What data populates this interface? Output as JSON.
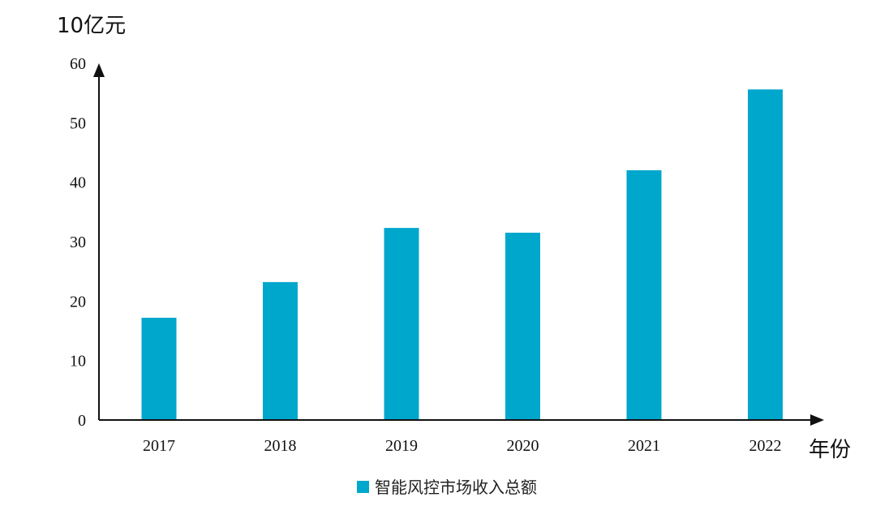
{
  "chart_data": {
    "type": "bar",
    "ylabel": "10亿元",
    "xlabel": "年份",
    "categories": [
      "2017",
      "2018",
      "2019",
      "2020",
      "2021",
      "2022"
    ],
    "series": [
      {
        "name": "智能风控市场收入总额",
        "values": [
          17.2,
          23.2,
          32.3,
          31.5,
          42.0,
          55.6
        ],
        "color": "#00a7cc"
      }
    ],
    "yticks": [
      "0",
      "10",
      "20",
      "30",
      "40",
      "50",
      "60"
    ],
    "ylim": [
      0,
      60
    ],
    "grid": false,
    "legend_position": "bottom-center"
  }
}
